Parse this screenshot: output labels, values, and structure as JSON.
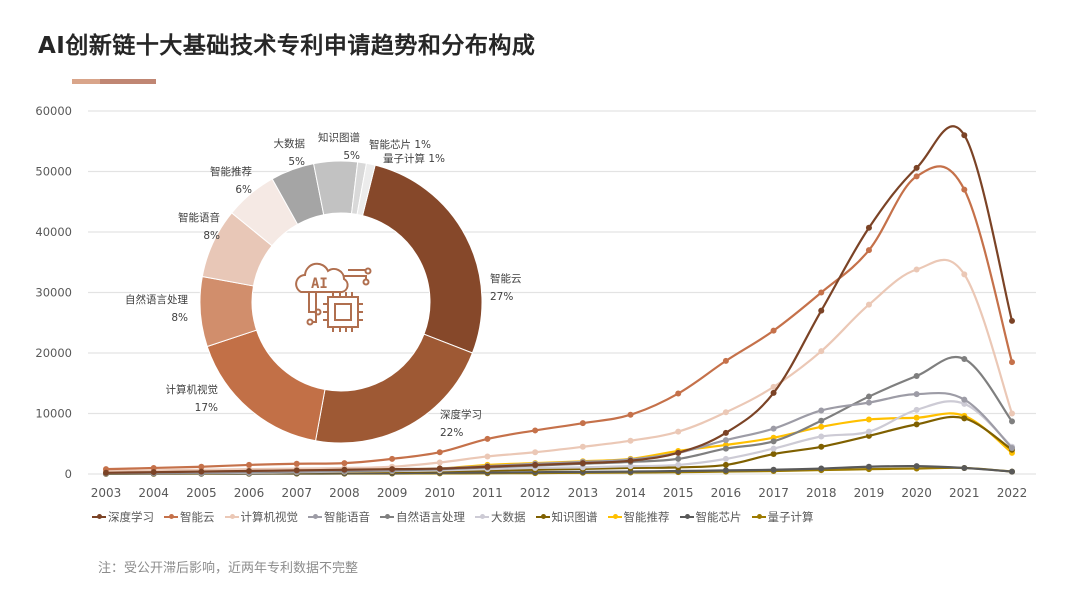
{
  "title": "AI创新链十大基础技术专利申请趋势和分布构成",
  "note": "注：受公开滞后影响，近两年专利数据不完整",
  "chart_data": [
    {
      "type": "line",
      "x": [
        2003,
        2004,
        2005,
        2006,
        2007,
        2008,
        2009,
        2010,
        2011,
        2012,
        2013,
        2014,
        2015,
        2016,
        2017,
        2018,
        2019,
        2020,
        2021,
        2022
      ],
      "ylim": [
        0,
        60000
      ],
      "yticks": [
        0,
        10000,
        20000,
        30000,
        40000,
        50000,
        60000
      ],
      "grid": true,
      "smooth": true,
      "legend_position": "bottom",
      "series": [
        {
          "name": "深度学习",
          "color": "#7b4326",
          "values": [
            200,
            300,
            400,
            500,
            600,
            700,
            800,
            900,
            1200,
            1500,
            1800,
            2200,
            3500,
            6800,
            13400,
            27000,
            40700,
            50600,
            56000,
            25300
          ]
        },
        {
          "name": "智能云",
          "color": "#c5714a",
          "values": [
            800,
            1000,
            1200,
            1500,
            1700,
            1800,
            2500,
            3600,
            5800,
            7200,
            8400,
            9800,
            13300,
            18700,
            23700,
            30000,
            37000,
            49200,
            47000,
            18500
          ]
        },
        {
          "name": "计算机视觉",
          "color": "#ebc8b6",
          "values": [
            500,
            600,
            700,
            800,
            900,
            1000,
            1200,
            1900,
            2900,
            3600,
            4500,
            5500,
            7000,
            10200,
            14400,
            20300,
            28000,
            33800,
            33000,
            10000
          ]
        },
        {
          "name": "智能语音",
          "color": "#9d9ca6",
          "values": [
            200,
            250,
            300,
            400,
            500,
            600,
            700,
            900,
            1300,
            1700,
            2000,
            2400,
            3500,
            5600,
            7500,
            10500,
            11800,
            13200,
            12300,
            4300
          ]
        },
        {
          "name": "自然语言处理",
          "color": "#7f7f7f",
          "values": [
            100,
            150,
            200,
            300,
            400,
            500,
            600,
            800,
            1100,
            1400,
            1700,
            2000,
            2500,
            4200,
            5400,
            8800,
            12800,
            16200,
            19000,
            8700
          ]
        },
        {
          "name": "大数据",
          "color": "#cdcbd5",
          "values": [
            100,
            120,
            150,
            200,
            300,
            400,
            500,
            600,
            800,
            1000,
            1100,
            1300,
            1500,
            2500,
            4200,
            6200,
            7000,
            10600,
            11600,
            4500
          ]
        },
        {
          "name": "知识图谱",
          "color": "#7f6000",
          "values": [
            100,
            120,
            150,
            200,
            250,
            300,
            350,
            450,
            600,
            700,
            850,
            1000,
            1100,
            1500,
            3300,
            4500,
            6300,
            8200,
            9200,
            4000
          ]
        },
        {
          "name": "智能推荐",
          "color": "#ffc000",
          "values": [
            300,
            350,
            400,
            500,
            600,
            700,
            800,
            900,
            1500,
            1800,
            2100,
            2500,
            3800,
            4800,
            6000,
            7800,
            9000,
            9300,
            9600,
            3500
          ]
        },
        {
          "name": "智能芯片",
          "color": "#595959",
          "values": [
            50,
            60,
            70,
            80,
            100,
            120,
            150,
            200,
            250,
            300,
            350,
            400,
            500,
            600,
            700,
            900,
            1200,
            1300,
            1000,
            400
          ]
        },
        {
          "name": "量子计算",
          "color": "#9c7a00",
          "values": [
            20,
            30,
            40,
            50,
            60,
            70,
            80,
            100,
            120,
            150,
            200,
            250,
            300,
            400,
            500,
            650,
            800,
            900,
            1000,
            400
          ]
        }
      ]
    },
    {
      "type": "pie",
      "donut": true,
      "slices": [
        {
          "name": "智能云",
          "value": 27,
          "label": "27%",
          "color": "#86482a"
        },
        {
          "name": "深度学习",
          "value": 22,
          "label": "22%",
          "color": "#9e5934"
        },
        {
          "name": "计算机视觉",
          "value": 17,
          "label": "17%",
          "color": "#c27047"
        },
        {
          "name": "自然语言处理",
          "value": 8,
          "label": "8%",
          "color": "#d18e6c"
        },
        {
          "name": "智能语音",
          "value": 8,
          "label": "8%",
          "color": "#e8c7b7"
        },
        {
          "name": "智能推荐",
          "value": 6,
          "label": "6%",
          "color": "#f5e9e4"
        },
        {
          "name": "大数据",
          "value": 5,
          "label": "5%",
          "color": "#a5a5a5"
        },
        {
          "name": "知识图谱",
          "value": 5,
          "label": "5%",
          "color": "#c2c2c2"
        },
        {
          "name": "智能芯片",
          "value": 1,
          "label": "1%",
          "color": "#d9d9d9"
        },
        {
          "name": "量子计算",
          "value": 1,
          "label": "1%",
          "color": "#ececec"
        }
      ],
      "center_icon": "ai-cloud-chip-icon",
      "center_icon_text": "AI"
    }
  ]
}
